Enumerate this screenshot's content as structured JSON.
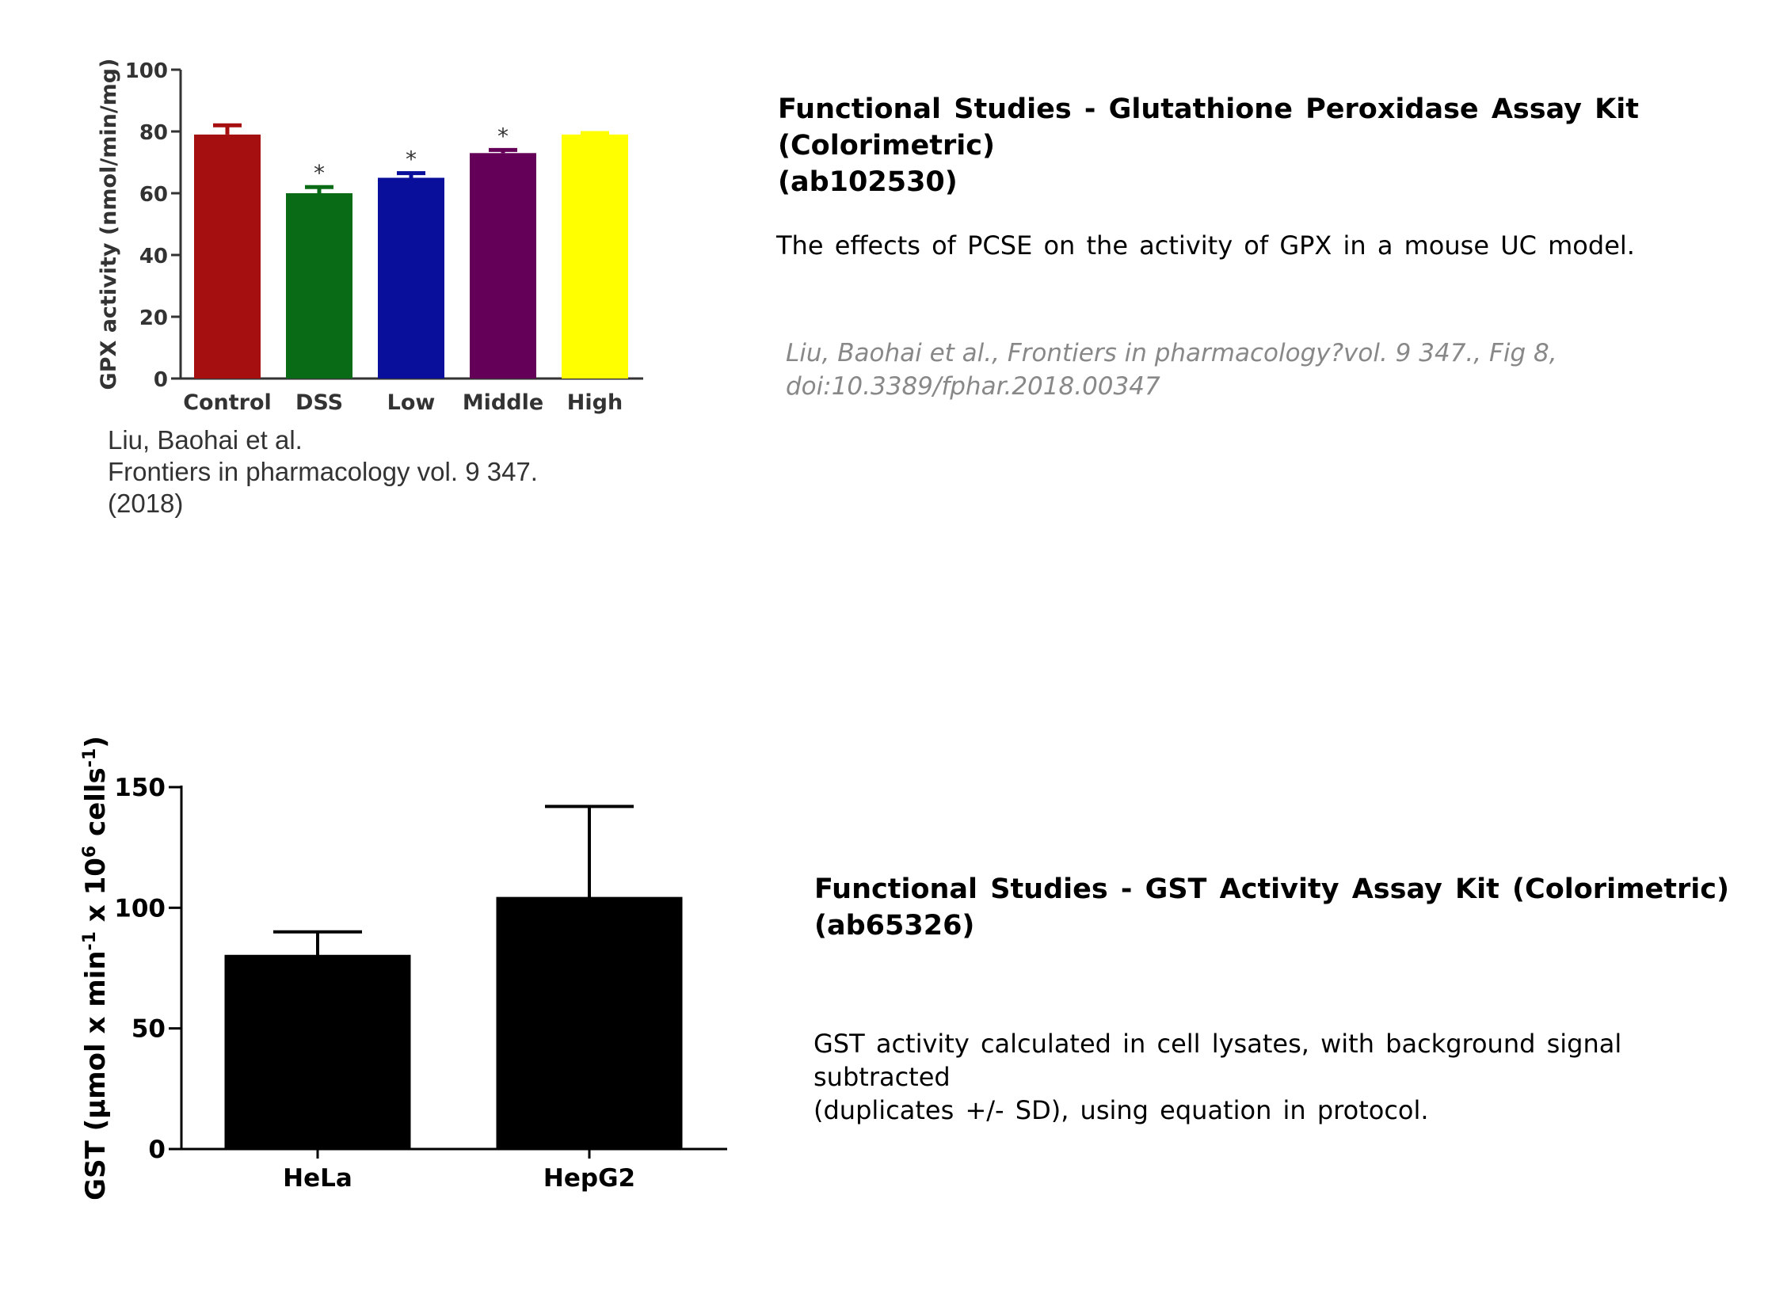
{
  "top": {
    "heading_line1": "Functional Studies - Glutathione Peroxidase Assay Kit (Colorimetric)",
    "heading_line2": "(ab102530)",
    "description": "The effects of PCSE on the activity of GPX in a mouse UC model.",
    "citation_line1": "Liu, Baohai et al., Frontiers in pharmacology?vol. 9 347., Fig 8,",
    "citation_line2": "doi:10.3389/fphar.2018.00347",
    "image_citation": [
      "Liu, Baohai et al.",
      "Frontiers in pharmacology vol. 9 347.",
      "(2018)"
    ]
  },
  "bottom": {
    "heading_line1": "Functional Studies - GST Activity Assay Kit (Colorimetric)",
    "heading_line2": "(ab65326)",
    "description_line1": "GST activity calculated in cell lysates, with background signal subtracted",
    "description_line2": "(duplicates +/- SD), using equation in protocol."
  },
  "chart_data": [
    {
      "type": "bar",
      "categories": [
        "Control",
        "DSS",
        "Low",
        "Middle",
        "High"
      ],
      "values": [
        79,
        60,
        65,
        73,
        79
      ],
      "errors": [
        3,
        2,
        1.5,
        1,
        0.5
      ],
      "annotations": [
        "",
        "*",
        "*",
        "*",
        ""
      ],
      "colors": [
        "#a50f0f",
        "#0a6b16",
        "#0a0f9b",
        "#640057",
        "#ffff00"
      ],
      "ylabel": "GPX activity (nmol/min/mg)",
      "ylim": [
        0,
        100
      ],
      "yticks": [
        0,
        20,
        40,
        60,
        80,
        100
      ]
    },
    {
      "type": "bar",
      "categories": [
        "HeLa",
        "HepG2"
      ],
      "values": [
        80,
        104
      ],
      "errors": [
        10,
        38
      ],
      "colors": [
        "#000000",
        "#000000"
      ],
      "ylabel_parts": [
        "GST (",
        "μ",
        "mol x min",
        "-1",
        " x 10",
        "6",
        " cells",
        "-1",
        ")"
      ],
      "ylim": [
        0,
        150
      ],
      "yticks": [
        0,
        50,
        100,
        150
      ]
    }
  ]
}
